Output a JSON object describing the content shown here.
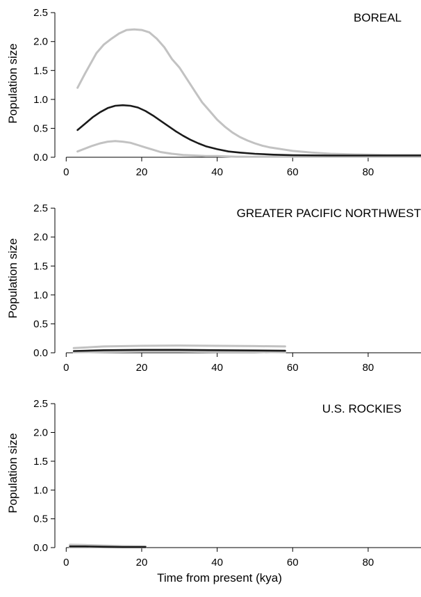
{
  "colors": {
    "median": "#1a1a1a",
    "interval": "#c2c2c2"
  },
  "xlabel": "Time from present (kya)",
  "ylabel": "Population size",
  "xticks": [
    0,
    20,
    40,
    60,
    80
  ],
  "xtick_labels": [
    "0",
    "20",
    "40",
    "60",
    "80"
  ],
  "yticks": [
    0,
    0.5,
    1,
    1.5,
    2,
    2.5
  ],
  "ytick_labels": [
    "0.0",
    "0.5",
    "1.0",
    "1.5",
    "2.0",
    "2.5"
  ],
  "chart_data": [
    {
      "type": "line",
      "panel_label": "BOREAL",
      "xlabel": "",
      "ylabel": "Population size",
      "xlim": [
        -3,
        94
      ],
      "ylim": [
        0,
        2.55
      ],
      "series": [
        {
          "role": "upper",
          "color": "#c2c2c2",
          "x": [
            3,
            5,
            8,
            10,
            12,
            14,
            16,
            18,
            20,
            22,
            24,
            26,
            28,
            30,
            32,
            34,
            36,
            38,
            40,
            42,
            44,
            46,
            48,
            50,
            52,
            54,
            56,
            58,
            60,
            65,
            70,
            75,
            80,
            85,
            90,
            94
          ],
          "y": [
            1.2,
            1.45,
            1.8,
            1.95,
            2.05,
            2.14,
            2.2,
            2.21,
            2.2,
            2.16,
            2.05,
            1.9,
            1.7,
            1.55,
            1.35,
            1.15,
            0.95,
            0.8,
            0.65,
            0.53,
            0.43,
            0.35,
            0.29,
            0.24,
            0.2,
            0.17,
            0.15,
            0.13,
            0.11,
            0.08,
            0.06,
            0.05,
            0.045,
            0.04,
            0.04,
            0.04
          ]
        },
        {
          "role": "median",
          "color": "#1a1a1a",
          "x": [
            3,
            5,
            7,
            9,
            11,
            13,
            15,
            17,
            19,
            21,
            23,
            25,
            27,
            29,
            31,
            33,
            35,
            37,
            40,
            43,
            46,
            50,
            55,
            60,
            70,
            80,
            94
          ],
          "y": [
            0.47,
            0.58,
            0.69,
            0.78,
            0.85,
            0.89,
            0.9,
            0.89,
            0.86,
            0.8,
            0.72,
            0.63,
            0.54,
            0.45,
            0.37,
            0.3,
            0.24,
            0.19,
            0.14,
            0.1,
            0.08,
            0.06,
            0.045,
            0.035,
            0.03,
            0.03,
            0.03
          ]
        },
        {
          "role": "lower",
          "color": "#c2c2c2",
          "x": [
            3,
            5,
            7,
            9,
            11,
            13,
            15,
            17,
            19,
            21,
            23,
            25,
            28,
            31,
            34,
            37,
            40,
            45,
            50,
            60,
            70,
            80,
            94
          ],
          "y": [
            0.1,
            0.15,
            0.2,
            0.24,
            0.27,
            0.28,
            0.27,
            0.25,
            0.21,
            0.17,
            0.13,
            0.09,
            0.06,
            0.04,
            0.03,
            0.02,
            0.02,
            0.01,
            0.01,
            0.01,
            0.01,
            0.01,
            0.01
          ]
        }
      ]
    },
    {
      "type": "line",
      "panel_label": "GREATER PACIFIC NORTHWEST",
      "xlabel": "",
      "ylabel": "Population size",
      "xlim": [
        -3,
        94
      ],
      "ylim": [
        0,
        2.55
      ],
      "series": [
        {
          "role": "upper",
          "color": "#c2c2c2",
          "x": [
            2,
            10,
            20,
            30,
            40,
            50,
            58
          ],
          "y": [
            0.08,
            0.11,
            0.12,
            0.125,
            0.12,
            0.115,
            0.11
          ]
        },
        {
          "role": "median",
          "color": "#1a1a1a",
          "x": [
            2,
            10,
            20,
            30,
            40,
            50,
            58
          ],
          "y": [
            0.03,
            0.045,
            0.05,
            0.05,
            0.045,
            0.04,
            0.035
          ]
        },
        {
          "role": "lower",
          "color": "#c2c2c2",
          "x": [
            2,
            10,
            20,
            30,
            40,
            50,
            58
          ],
          "y": [
            0.01,
            0.015,
            0.02,
            0.02,
            0.015,
            0.015,
            0.01
          ]
        }
      ]
    },
    {
      "type": "line",
      "panel_label": "U.S. ROCKIES",
      "xlabel": "Time from present (kya)",
      "ylabel": "Population size",
      "xlim": [
        -3,
        94
      ],
      "ylim": [
        0,
        2.55
      ],
      "series": [
        {
          "role": "upper",
          "color": "#c2c2c2",
          "x": [
            1,
            5,
            10,
            15,
            21
          ],
          "y": [
            0.05,
            0.045,
            0.035,
            0.025,
            0.02
          ]
        },
        {
          "role": "median",
          "color": "#1a1a1a",
          "x": [
            1,
            5,
            10,
            15,
            21
          ],
          "y": [
            0.02,
            0.02,
            0.015,
            0.01,
            0.01
          ]
        },
        {
          "role": "lower",
          "color": "#c2c2c2",
          "x": [
            1,
            5,
            10,
            15,
            21
          ],
          "y": [
            0.005,
            0.005,
            0.005,
            0.005,
            0.005
          ]
        }
      ]
    }
  ]
}
